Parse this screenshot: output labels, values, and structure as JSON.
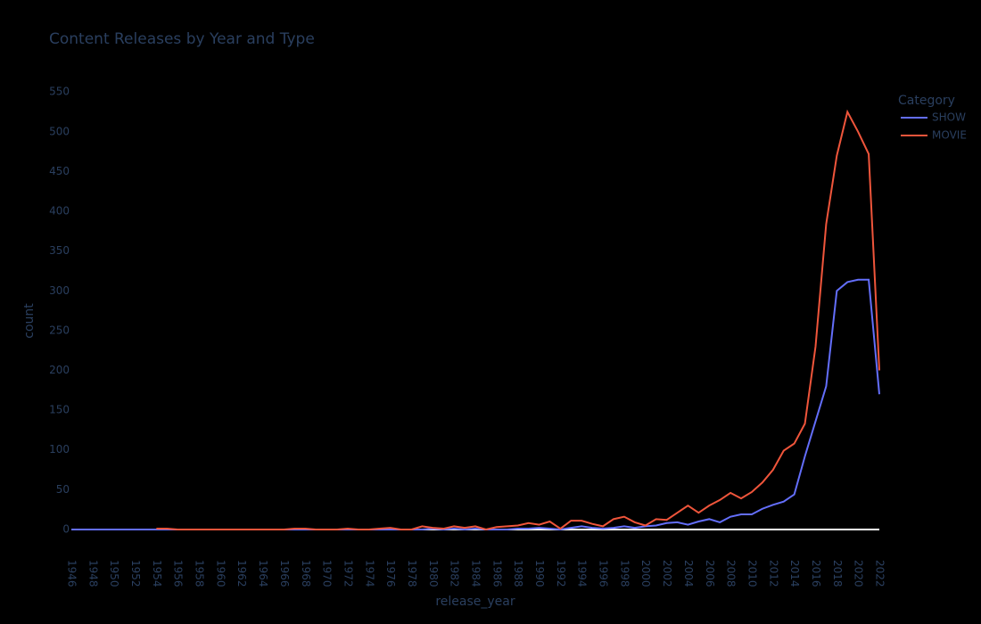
{
  "chart_data": {
    "type": "line",
    "title": "Content Releases by Year and Type",
    "x_label": "release_year",
    "y_label": "count",
    "legend_title": "Category",
    "x": [
      1946,
      1947,
      1948,
      1949,
      1950,
      1951,
      1952,
      1953,
      1954,
      1955,
      1956,
      1957,
      1958,
      1959,
      1960,
      1961,
      1962,
      1963,
      1964,
      1965,
      1966,
      1967,
      1968,
      1969,
      1970,
      1971,
      1972,
      1973,
      1974,
      1975,
      1976,
      1977,
      1978,
      1979,
      1980,
      1981,
      1982,
      1983,
      1984,
      1985,
      1986,
      1987,
      1988,
      1989,
      1990,
      1991,
      1992,
      1993,
      1994,
      1995,
      1996,
      1997,
      1998,
      1999,
      2000,
      2001,
      2002,
      2003,
      2004,
      2005,
      2006,
      2007,
      2008,
      2009,
      2010,
      2011,
      2012,
      2013,
      2014,
      2015,
      2016,
      2017,
      2018,
      2019,
      2020,
      2021,
      2022
    ],
    "series": [
      {
        "name": "SHOW",
        "color": "#636efa",
        "values": [
          0,
          0,
          0,
          0,
          0,
          0,
          0,
          0,
          0,
          0,
          0,
          0,
          0,
          0,
          0,
          0,
          0,
          0,
          0,
          0,
          0,
          0,
          0,
          0,
          0,
          0,
          0,
          0,
          0,
          0,
          0,
          0,
          0,
          0,
          1,
          0,
          1,
          0,
          1,
          0,
          0,
          0,
          1,
          1,
          2,
          1,
          0,
          2,
          4,
          2,
          1,
          2,
          4,
          2,
          4,
          5,
          8,
          9,
          6,
          10,
          13,
          9,
          16,
          19,
          19,
          26,
          31,
          35,
          44,
          92,
          136,
          180,
          300,
          311,
          314,
          314,
          170
        ]
      },
      {
        "name": "MOVIE",
        "color": "#ef553b",
        "values": [
          null,
          null,
          null,
          null,
          null,
          null,
          null,
          null,
          1,
          1,
          0,
          0,
          0,
          0,
          0,
          0,
          0,
          0,
          0,
          0,
          0,
          1,
          1,
          0,
          0,
          0,
          1,
          0,
          0,
          1,
          2,
          0,
          0,
          4,
          2,
          1,
          4,
          2,
          4,
          0,
          3,
          4,
          5,
          8,
          6,
          10,
          1,
          11,
          11,
          7,
          4,
          13,
          16,
          9,
          5,
          13,
          12,
          21,
          30,
          21,
          30,
          37,
          46,
          39,
          47,
          59,
          75,
          99,
          108,
          133,
          230,
          384,
          470,
          525,
          500,
          472,
          200
        ]
      }
    ],
    "xlim": [
      1946,
      2022
    ],
    "xticks": [
      1946,
      1948,
      1950,
      1952,
      1954,
      1956,
      1958,
      1960,
      1962,
      1964,
      1966,
      1968,
      1970,
      1972,
      1974,
      1976,
      1978,
      1980,
      1982,
      1984,
      1986,
      1988,
      1990,
      1992,
      1994,
      1996,
      1998,
      2000,
      2002,
      2004,
      2006,
      2008,
      2010,
      2012,
      2014,
      2016,
      2018,
      2020,
      2022
    ],
    "ylim": [
      -18,
      576
    ],
    "yticks": [
      0,
      50,
      100,
      150,
      200,
      250,
      300,
      350,
      400,
      450,
      500,
      550
    ],
    "grid": false,
    "zeroline": true,
    "legend_position": "right"
  }
}
